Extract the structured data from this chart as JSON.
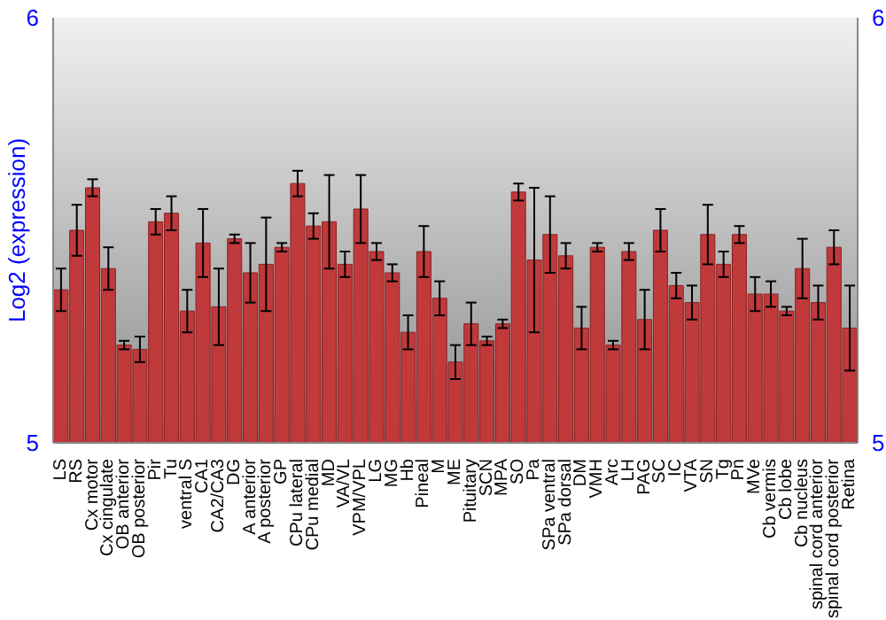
{
  "chart_data": {
    "type": "bar",
    "ylabel": "Log2 (expression)",
    "categories": [
      "LS",
      "RS",
      "Cx motor",
      "Cx cingulate",
      "OB anterior",
      "OB posterior",
      "Pir",
      "Tu",
      "ventral S",
      "CA1",
      "CA2/CA3",
      "DG",
      "A anterior",
      "A posterior",
      "GP",
      "CPu lateral",
      "CPu medial",
      "MD",
      "VA/VL",
      "VPM/VPL",
      "LG",
      "MG",
      "Hb",
      "Pineal",
      "M",
      "ME",
      "Pituitary",
      "SCN",
      "MPA",
      "SO",
      "Pa",
      "SPa ventral",
      "SPa dorsal",
      "DM",
      "VMH",
      "Arc",
      "LH",
      "PAG",
      "SC",
      "IC",
      "VTA",
      "SN",
      "Tg",
      "Pn",
      "MVe",
      "Cb vermis",
      "Cb lobe",
      "Cb nucleus",
      "spinal cord anterior",
      "spinal cord posterior",
      "Retina"
    ],
    "values": [
      5.36,
      5.5,
      5.6,
      5.41,
      5.23,
      5.22,
      5.52,
      5.54,
      5.31,
      5.47,
      5.32,
      5.48,
      5.4,
      5.42,
      5.46,
      5.61,
      5.51,
      5.52,
      5.42,
      5.55,
      5.45,
      5.4,
      5.26,
      5.45,
      5.34,
      5.19,
      5.28,
      5.24,
      5.28,
      5.59,
      5.43,
      5.49,
      5.44,
      5.27,
      5.46,
      5.23,
      5.45,
      5.29,
      5.5,
      5.37,
      5.33,
      5.49,
      5.42,
      5.49,
      5.35,
      5.35,
      5.31,
      5.41,
      5.33,
      5.46,
      5.27
    ],
    "errors": [
      0.05,
      0.06,
      0.02,
      0.05,
      0.01,
      0.03,
      0.03,
      0.04,
      0.05,
      0.08,
      0.09,
      0.01,
      0.07,
      0.11,
      0.01,
      0.03,
      0.03,
      0.11,
      0.03,
      0.08,
      0.02,
      0.02,
      0.04,
      0.06,
      0.04,
      0.04,
      0.05,
      0.01,
      0.01,
      0.02,
      0.17,
      0.09,
      0.03,
      0.05,
      0.01,
      0.01,
      0.02,
      0.07,
      0.05,
      0.03,
      0.04,
      0.07,
      0.03,
      0.02,
      0.04,
      0.03,
      0.01,
      0.07,
      0.04,
      0.04,
      0.1
    ],
    "color": "#c0393b",
    "ylim": [
      5,
      6
    ],
    "yticks": [
      5,
      6
    ],
    "y2lim": [
      5,
      6
    ],
    "y2ticks": [
      5,
      6
    ]
  }
}
